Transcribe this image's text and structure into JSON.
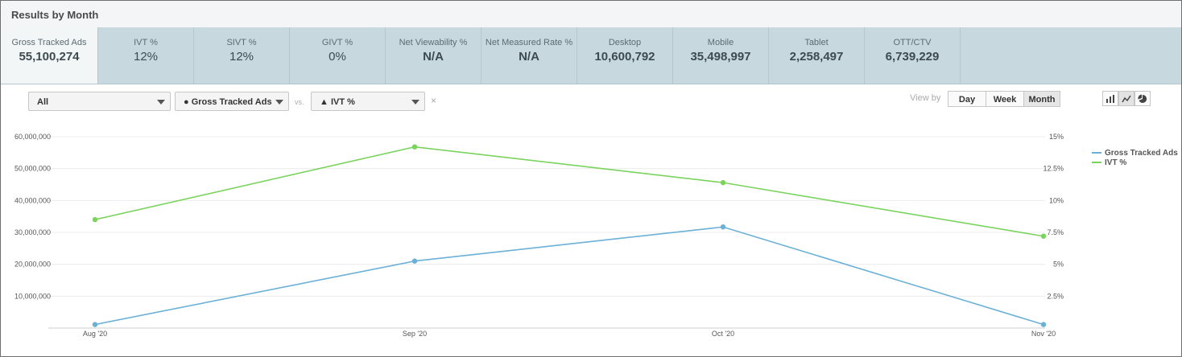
{
  "header": {
    "title": "Results by Month"
  },
  "metrics": [
    {
      "label": "Gross Tracked Ads",
      "value": "55,100,274"
    },
    {
      "label": "IVT %",
      "value": "12%"
    },
    {
      "label": "SIVT %",
      "value": "12%"
    },
    {
      "label": "GIVT %",
      "value": "0%"
    },
    {
      "label": "Net Viewability %",
      "value": "N/A"
    },
    {
      "label": "Net Measured Rate %",
      "value": "N/A"
    },
    {
      "label": "Desktop",
      "value": "10,600,792"
    },
    {
      "label": "Mobile",
      "value": "35,498,997"
    },
    {
      "label": "Tablet",
      "value": "2,258,497"
    },
    {
      "label": "OTT/CTV",
      "value": "6,739,229"
    }
  ],
  "controls": {
    "filter_select": "All",
    "metric1_select": "● Gross Tracked Ads",
    "vs_label": "vs.",
    "metric2_select": "▲ IVT %",
    "clear_label": "×",
    "view_by_label": "View by",
    "view_options": [
      "Day",
      "Week",
      "Month"
    ],
    "view_selected": "Month",
    "chart_type_icons": [
      "bar-chart-icon",
      "line-chart-icon",
      "pie-chart-icon"
    ]
  },
  "chart_data": {
    "type": "line",
    "categories": [
      "Aug '20",
      "Sep '20",
      "Oct '20",
      "Nov '20"
    ],
    "series": [
      {
        "name": "Gross Tracked Ads",
        "axis": "left",
        "color": "#6bb0d6",
        "values": [
          1100000,
          21000000,
          31700000,
          1100000
        ]
      },
      {
        "name": "IVT %",
        "axis": "right",
        "color": "#7ad35c",
        "values": [
          8.5,
          14.2,
          11.4,
          7.2
        ]
      }
    ],
    "y_left": {
      "min": 0,
      "max": 60000000,
      "ticks": [
        "10,000,000",
        "20,000,000",
        "30,000,000",
        "40,000,000",
        "50,000,000",
        "60,000,000"
      ]
    },
    "y_right": {
      "min": 0,
      "max": 15,
      "ticks": [
        "2.5%",
        "5%",
        "7.5%",
        "10%",
        "12.5%",
        "15%"
      ]
    },
    "grid": true,
    "legend": "right"
  }
}
